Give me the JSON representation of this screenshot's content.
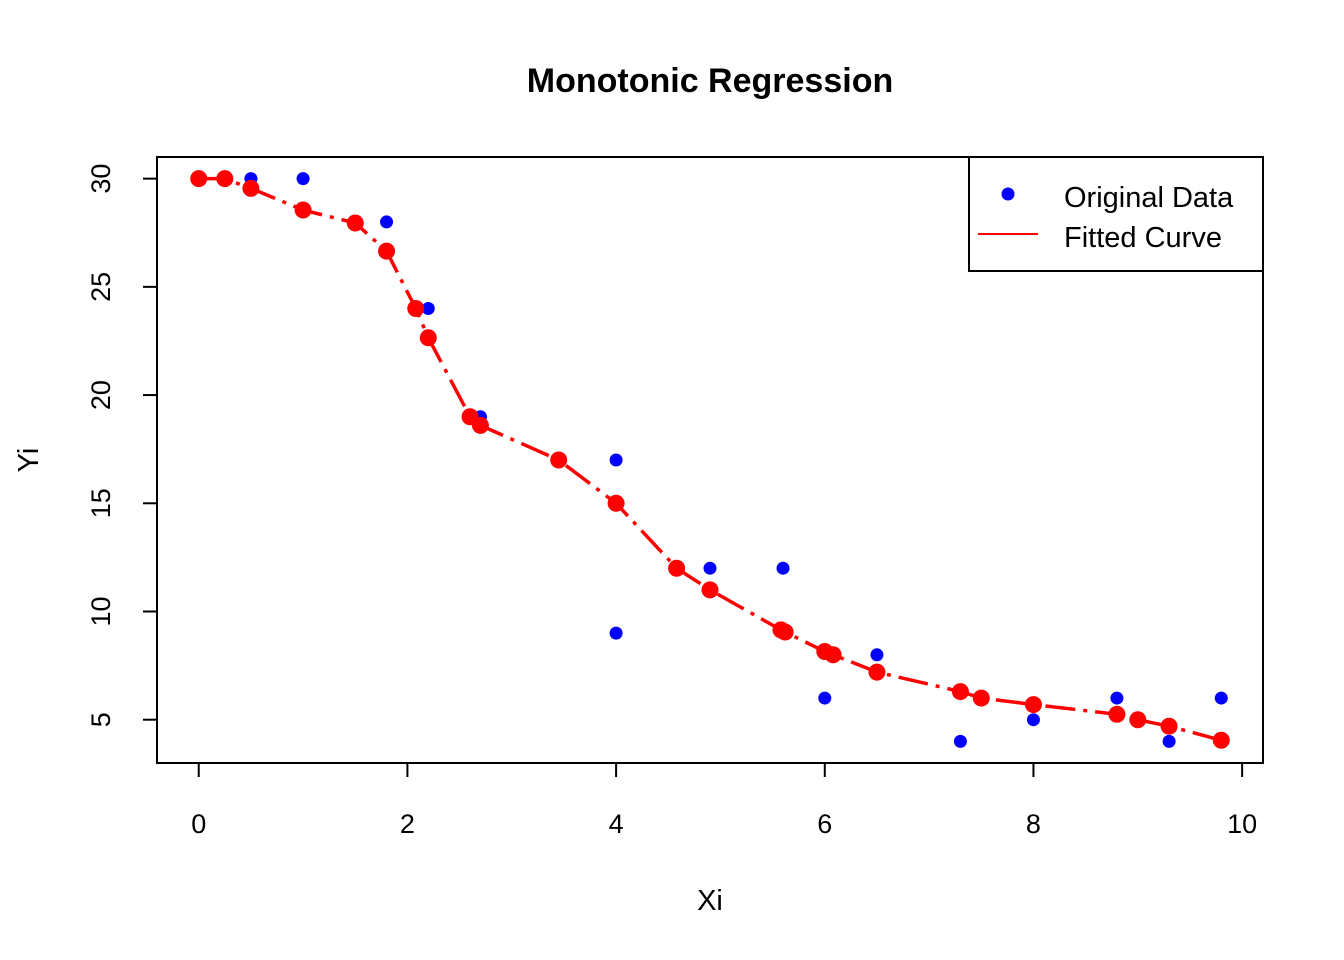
{
  "chart_data": {
    "type": "scatter",
    "title": "Monotonic Regression",
    "xlabel": "Xi",
    "ylabel": "Yi",
    "xlim": [
      -0.4,
      10.2
    ],
    "ylim": [
      3.0,
      31.0
    ],
    "xticks": [
      0,
      2,
      4,
      6,
      8,
      10
    ],
    "yticks": [
      5,
      10,
      15,
      20,
      25,
      30
    ],
    "grid": false,
    "legend_position": "top-right",
    "series": [
      {
        "name": "Original Data",
        "kind": "points",
        "color": "#0000ff",
        "x": [
          0,
          0.25,
          0.5,
          1.0,
          1.5,
          1.8,
          2.08,
          2.2,
          2.6,
          2.7,
          3.45,
          4.0,
          4.0,
          4.58,
          4.9,
          5.6,
          5.6,
          6.0,
          6.08,
          6.5,
          7.3,
          7.5,
          8.0,
          8.8,
          9.0,
          9.3,
          9.8
        ],
        "y": [
          30,
          30,
          30,
          30,
          28,
          28,
          24,
          24,
          19,
          19,
          17,
          17,
          9,
          12,
          12,
          12,
          9,
          6,
          8,
          8,
          4,
          6,
          5,
          6,
          5,
          4,
          6
        ]
      },
      {
        "name": "Fitted Curve",
        "kind": "line",
        "line_style": "dashdot",
        "color": "#ff0000",
        "x": [
          0,
          0.25,
          0.5,
          1.0,
          1.5,
          1.8,
          2.08,
          2.2,
          2.6,
          2.7,
          3.45,
          4.0,
          4.58,
          4.9,
          5.58,
          5.62,
          6.0,
          6.08,
          6.5,
          7.3,
          7.5,
          8.0,
          8.8,
          9.0,
          9.3,
          9.8
        ],
        "y": [
          30.0,
          30.0,
          29.55,
          28.55,
          27.95,
          26.65,
          24.0,
          22.65,
          19.0,
          18.6,
          17.0,
          15.0,
          12.0,
          11.0,
          9.15,
          9.05,
          8.15,
          8.0,
          7.2,
          6.3,
          6.0,
          5.7,
          5.25,
          5.0,
          4.7,
          4.05
        ]
      }
    ]
  }
}
